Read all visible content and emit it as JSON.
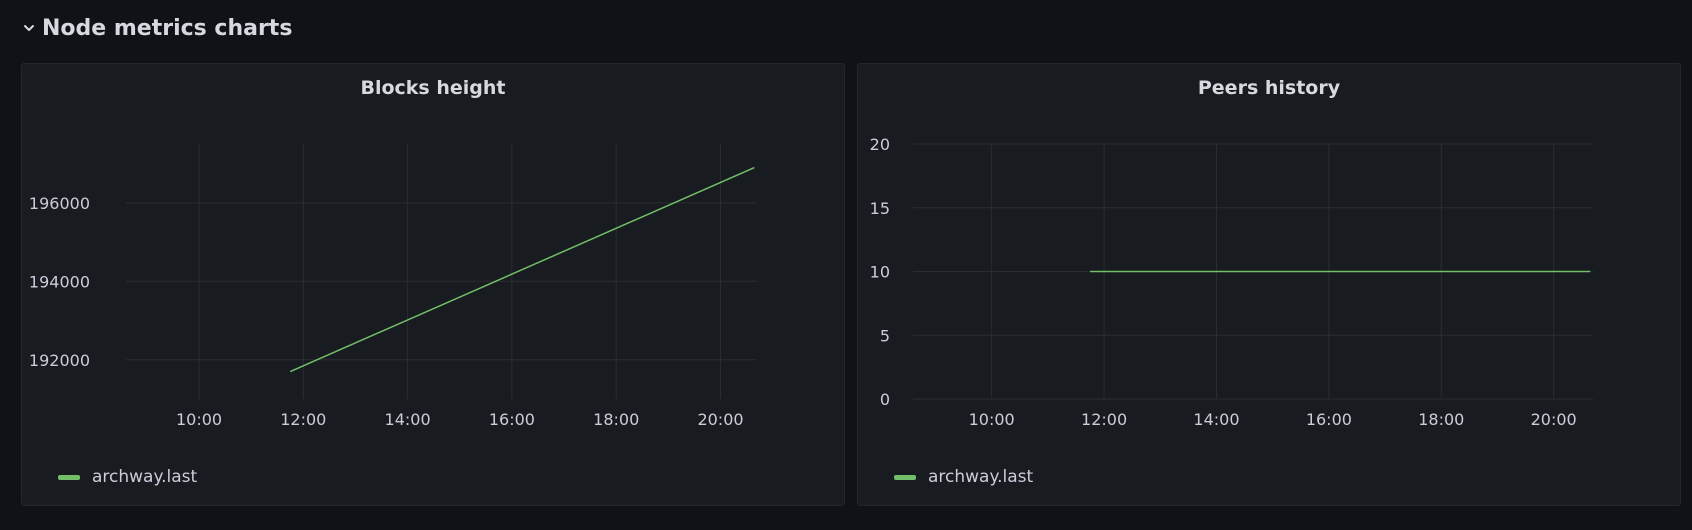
{
  "row": {
    "title": "Node metrics charts",
    "collapse_icon": "chevron-down-icon"
  },
  "colors": {
    "series": "#73bf69",
    "grid": "#2a2d33",
    "text": "#ccccdc"
  },
  "panels": [
    {
      "title": "Blocks height",
      "legend": "archway.last",
      "chart_data": {
        "type": "line",
        "title": "Blocks height",
        "xlabel": "",
        "ylabel": "",
        "xlim": [
          8.6,
          20.7
        ],
        "ylim": [
          191000,
          197500
        ],
        "x_ticks": [
          10,
          12,
          14,
          16,
          18,
          20
        ],
        "x_tick_labels": [
          "10:00",
          "12:00",
          "14:00",
          "16:00",
          "18:00",
          "20:00"
        ],
        "y_ticks": [
          192000,
          194000,
          196000
        ],
        "y_tick_labels": [
          "192000",
          "194000",
          "196000"
        ],
        "grid": true,
        "legend_position": "bottom-left",
        "series": [
          {
            "name": "archway.last",
            "x": [
              11.75,
              20.65
            ],
            "y": [
              191700,
              196900
            ]
          }
        ]
      }
    },
    {
      "title": "Peers history",
      "legend": "archway.last",
      "chart_data": {
        "type": "line",
        "title": "Peers history",
        "xlabel": "",
        "ylabel": "",
        "xlim": [
          8.6,
          20.7
        ],
        "ylim": [
          0,
          20
        ],
        "x_ticks": [
          10,
          12,
          14,
          16,
          18,
          20
        ],
        "x_tick_labels": [
          "10:00",
          "12:00",
          "14:00",
          "16:00",
          "18:00",
          "20:00"
        ],
        "y_ticks": [
          0,
          5,
          10,
          15,
          20
        ],
        "y_tick_labels": [
          "0",
          "5",
          "10",
          "15",
          "20"
        ],
        "grid": true,
        "legend_position": "bottom-left",
        "series": [
          {
            "name": "archway.last",
            "x": [
              11.75,
              20.65
            ],
            "y": [
              10,
              10
            ]
          }
        ]
      }
    }
  ]
}
